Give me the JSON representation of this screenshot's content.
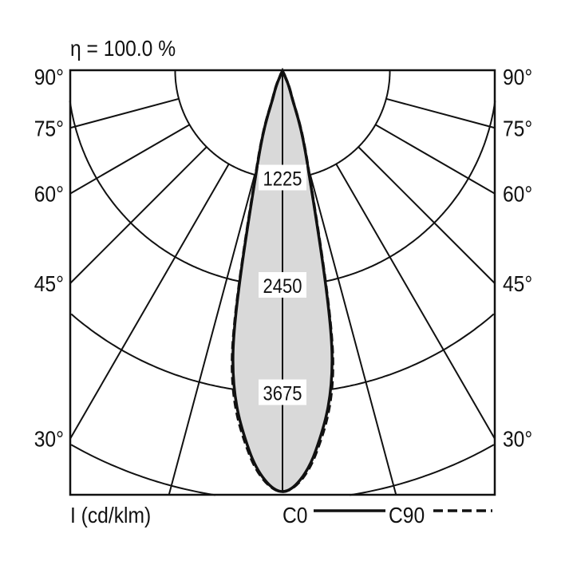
{
  "chart_data": {
    "type": "polar",
    "title": "η = 100.0 %",
    "unit_label": "I (cd/klm)",
    "radial_ticks": [
      1225,
      2450,
      3675,
      4900
    ],
    "radial_tick_labels": [
      "1225",
      "2450",
      "3675"
    ],
    "angle_labels": [
      "90°",
      "75°",
      "60°",
      "45°",
      "30°"
    ],
    "angle_label_values": [
      90,
      75,
      60,
      45,
      30
    ],
    "grid_angles": [
      15,
      30,
      45,
      60,
      75
    ],
    "legend": [
      {
        "name": "C0",
        "style": "solid"
      },
      {
        "name": "C90",
        "style": "dashed"
      }
    ],
    "series": [
      {
        "name": "C0",
        "angles": [
          0,
          5,
          10,
          15,
          20,
          25,
          30
        ],
        "values": [
          4800,
          4350,
          3250,
          1100,
          300,
          70,
          0
        ]
      },
      {
        "name": "C90",
        "angles": [
          0,
          5,
          10,
          15,
          20,
          25,
          30
        ],
        "values": [
          4800,
          4380,
          3300,
          1120,
          310,
          70,
          0
        ]
      }
    ],
    "fill_color": "#d9d9d9",
    "line_color": "#111111"
  }
}
